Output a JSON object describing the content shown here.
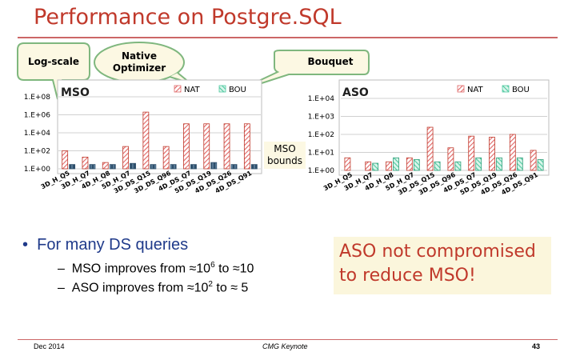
{
  "slide": {
    "title": "Performance on Postgre.SQL",
    "callouts": {
      "log_scale": "Log-scale",
      "native_optimizer": "Native Optimizer",
      "bouquet": "Bouquet",
      "mso_bounds": "MSO bounds"
    },
    "bullet": "For many DS queries",
    "sub_bullets": {
      "mso": {
        "prefix": "MSO improves from ≈10",
        "sup": "6",
        "suffix": " to ≈10"
      },
      "aso": {
        "prefix": "ASO improves from ≈10",
        "sup": "2",
        "suffix": " to ≈ 5"
      }
    },
    "aso_statement": [
      "ASO not compromised",
      "to reduce MSO!"
    ],
    "footer": {
      "date": "Dec 2014",
      "event": "CMG Keynote",
      "page": "43"
    },
    "colors": {
      "nat": "#e06666",
      "bou": "#4ec9a0",
      "bou_dark": "#2e4f6b",
      "title": "#c0392b",
      "bullet": "#1f3a8a"
    }
  },
  "chart_data": [
    {
      "type": "bar",
      "title": "MSO",
      "log_scale": true,
      "grid": true,
      "legend": "top-right",
      "ylim": [
        1,
        100000000
      ],
      "y_tick_labels": [
        "1.E+08",
        "1.E+06",
        "1.E+04",
        "1.E+02",
        "1.E+00"
      ],
      "categories": [
        "3D_H_Q5",
        "3D_H_Q7",
        "4D_H_Q8",
        "5D_H_Q7",
        "3D_DS_Q15",
        "3D_DS_Q96",
        "4D_DS_Q7",
        "5D_DS_Q19",
        "4D_DS_Q26",
        "4D_DS_Q91"
      ],
      "series": [
        {
          "name": "NAT",
          "values": [
            100,
            20,
            5,
            300,
            2000000,
            300,
            100000,
            100000,
            100000,
            100000
          ]
        },
        {
          "name": "BOU",
          "values": [
            3,
            3,
            3,
            4,
            3,
            3,
            3,
            5,
            3,
            3
          ]
        }
      ]
    },
    {
      "type": "bar",
      "title": "ASO",
      "log_scale": true,
      "grid": true,
      "legend": "top-right",
      "ylim": [
        1,
        10000
      ],
      "y_tick_labels": [
        "1.E+04",
        "1.E+03",
        "1.E+02",
        "1.E+01",
        "1.E+00"
      ],
      "categories": [
        "3D_H_Q5",
        "3D_H_Q7",
        "4D_H_Q8",
        "5D_H_Q7",
        "3D_DS_Q15",
        "3D_DS_Q96",
        "4D_DS_Q7",
        "5D_DS_Q19",
        "4D_DS_Q26",
        "4D_DS_Q91"
      ],
      "series": [
        {
          "name": "NAT",
          "values": [
            5,
            3,
            3,
            5,
            250,
            18,
            80,
            70,
            100,
            13
          ]
        },
        {
          "name": "BOU",
          "values": [
            1,
            2.5,
            5,
            4,
            3,
            3,
            5,
            5,
            5,
            4
          ]
        }
      ]
    }
  ]
}
